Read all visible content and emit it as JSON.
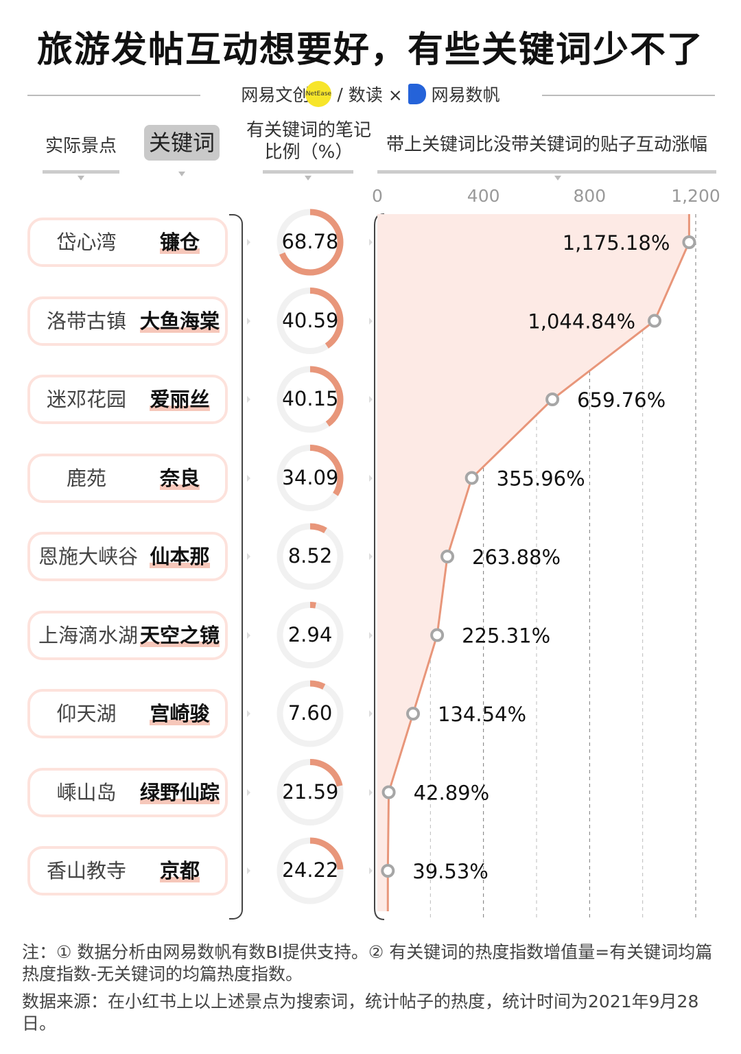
{
  "title": "旅游发帖互动想要好，有些关键词少不了",
  "brand": {
    "left": "网易文创",
    "dot": "NetEase",
    "sep": "/",
    "right": "数读 ×",
    "partner": "网易数帆"
  },
  "headers": {
    "scenic": "实际景点",
    "keyword": "关键词",
    "ratio_line1": "有关键词的笔记",
    "ratio_line2": "比例（%）",
    "uplift": "带上关键词比没带关键词的贴子互动涨幅"
  },
  "rows": [
    {
      "scenic": "岱心湾",
      "keyword": "镰仓"
    },
    {
      "scenic": "洛带古镇",
      "keyword": "大鱼海棠"
    },
    {
      "scenic": "迷邓花园",
      "keyword": "爱丽丝"
    },
    {
      "scenic": "鹿苑",
      "keyword": "奈良"
    },
    {
      "scenic": "恩施大峡谷",
      "keyword": "仙本那"
    },
    {
      "scenic": "上海滴水湖",
      "keyword": "天空之镜"
    },
    {
      "scenic": "仰天湖",
      "keyword": "宫崎骏"
    },
    {
      "scenic": "嵊山岛",
      "keyword": "绿野仙踪"
    },
    {
      "scenic": "香山教寺",
      "keyword": "京都"
    }
  ],
  "chart_data": {
    "type": "line",
    "categories": [
      "岱心湾",
      "洛带古镇",
      "迷邓花园",
      "鹿苑",
      "恩施大峡谷",
      "上海滴水湖",
      "仰天湖",
      "嵊山岛",
      "香山教寺"
    ],
    "ratio_percent": [
      68.78,
      40.59,
      40.15,
      34.09,
      8.52,
      2.94,
      7.6,
      21.59,
      24.22
    ],
    "ratio_labels": [
      "68.78",
      "40.59",
      "40.15",
      "34.09",
      "8.52",
      "2.94",
      "7.60",
      "21.59",
      "24.22"
    ],
    "uplift_percent": [
      1175.18,
      1044.84,
      659.76,
      355.96,
      263.88,
      225.31,
      134.54,
      42.89,
      39.53
    ],
    "uplift_labels": [
      "1,175.18%",
      "1,044.84%",
      "659.76%",
      "355.96%",
      "263.88%",
      "225.31%",
      "134.54%",
      "42.89%",
      "39.53%"
    ],
    "x_ticks": [
      0,
      400,
      800,
      1200
    ],
    "x_tick_labels": [
      "0",
      "400",
      "800",
      "1,200"
    ],
    "xlim": [
      0,
      1200
    ],
    "colors": {
      "accent": "#e8967a",
      "fill": "#fdeae5",
      "ring_bg": "#f1f1f1",
      "marker": "#a6a6a6"
    }
  },
  "notes": {
    "note": "注：① 数据分析由网易数帆有数BI提供支持。② 有关键词的热度指数增值量=有关键词均篇热度指数-无关键词的均篇热度指数。",
    "source": "数据来源：在小红书上以上述景点为搜索词，统计帖子的热度，统计时间为2021年9月28日。"
  }
}
